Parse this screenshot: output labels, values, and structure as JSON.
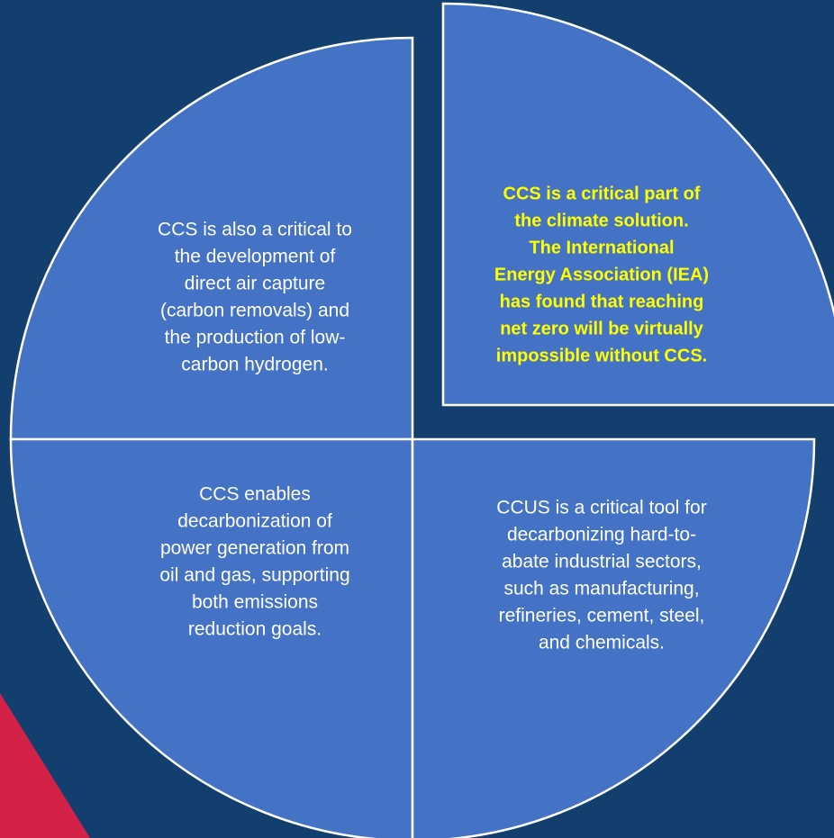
{
  "quadrants": [
    {
      "lines": [
        "CCS is also a critical to",
        "the development of",
        "direct air capture",
        "(carbon removals) and",
        "the production of low-",
        "carbon hydrogen."
      ]
    },
    {
      "lines": [
        "CCS is a critical part of",
        "the climate solution.",
        "The International",
        "Energy Association (IEA)",
        "has found that reaching",
        "net zero will be virtually",
        "impossible without CCS."
      ]
    },
    {
      "lines": [
        "CCS enables",
        "decarbonization of",
        "power generation from",
        "oil and gas, supporting",
        "both emissions",
        "reduction goals."
      ]
    },
    {
      "lines": [
        "CCUS is a critical tool for",
        "decarbonizing hard-to-",
        "abate industrial sectors,",
        "such as manufacturing,",
        "refineries, cement, steel,",
        "and chemicals."
      ]
    }
  ]
}
